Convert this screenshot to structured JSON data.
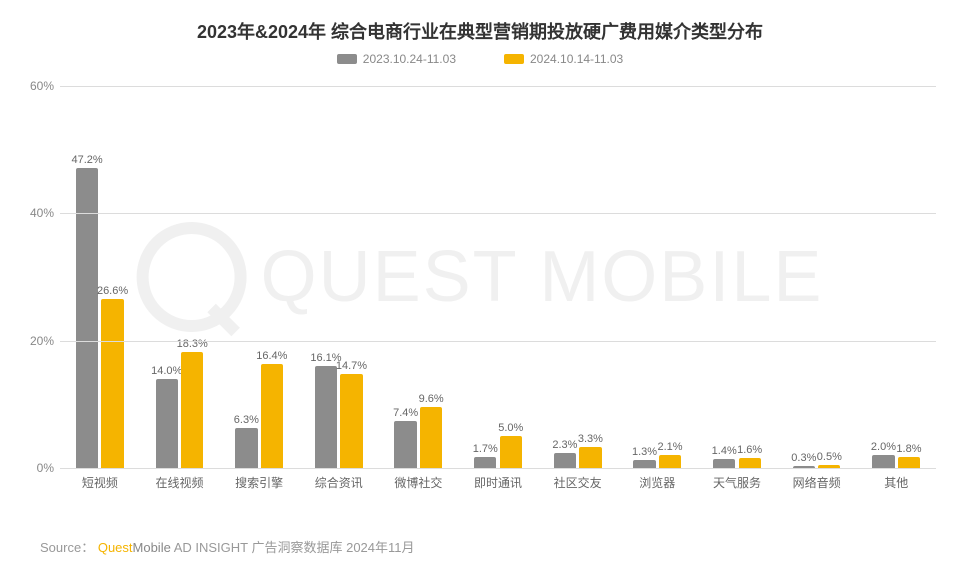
{
  "title": "2023年&2024年 综合电商行业在典型营销期投放硬广费用媒介类型分布",
  "watermark_text": "QUEST MOBILE",
  "legend": {
    "series1": {
      "label": "2023.10.24-11.03",
      "color": "#8c8c8c"
    },
    "series2": {
      "label": "2024.10.14-11.03",
      "color": "#f5b400"
    }
  },
  "chart": {
    "type": "bar",
    "ylim": [
      0,
      60
    ],
    "yticks": [
      0,
      20,
      40,
      60
    ],
    "ytick_labels": [
      "0%",
      "20%",
      "40%",
      "60%"
    ],
    "grid_color": "#dcdcdc",
    "background_color": "#ffffff",
    "bar_width_pct": 28,
    "bar_gap_pct": 4,
    "categories": [
      "短视频",
      "在线视频",
      "搜索引擎",
      "综合资讯",
      "微博社交",
      "即时通讯",
      "社区交友",
      "浏览器",
      "天气服务",
      "网络音频",
      "其他"
    ],
    "series": [
      {
        "key": "s1",
        "color": "#8c8c8c",
        "values": [
          47.2,
          14.0,
          6.3,
          16.1,
          7.4,
          1.7,
          2.3,
          1.3,
          1.4,
          0.3,
          2.0
        ]
      },
      {
        "key": "s2",
        "color": "#f5b400",
        "values": [
          26.6,
          18.3,
          16.4,
          14.7,
          9.6,
          5.0,
          3.3,
          2.1,
          1.6,
          0.5,
          1.8
        ]
      }
    ],
    "value_labels": [
      [
        "47.2%",
        "14.0%",
        "6.3%",
        "16.1%",
        "7.4%",
        "1.7%",
        "2.3%",
        "1.3%",
        "1.4%",
        "0.3%",
        "2.0%"
      ],
      [
        "26.6%",
        "18.3%",
        "16.4%",
        "14.7%",
        "9.6%",
        "5.0%",
        "3.3%",
        "2.1%",
        "1.6%",
        "0.5%",
        "1.8%"
      ]
    ],
    "label_fontsize": 11,
    "tick_fontsize": 12
  },
  "source": {
    "prefix": "Source：",
    "brand1": "Quest",
    "brand2": "Mobile",
    "rest": " AD INSIGHT 广告洞察数据库 2024年11月"
  }
}
